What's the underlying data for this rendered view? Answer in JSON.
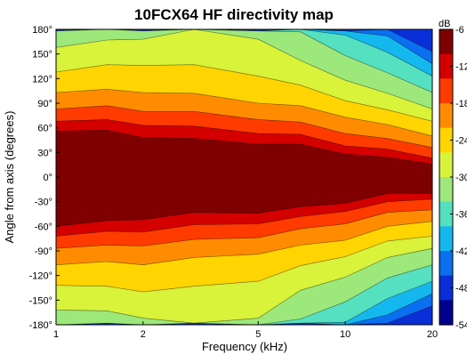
{
  "chart_data": {
    "type": "heatmap",
    "title": "10FCX64 HF directivity map",
    "xlabel": "Frequency (kHz)",
    "ylabel": "Angle from axis (degrees)",
    "x_scale": "log",
    "xlim": [
      1,
      20
    ],
    "ylim": [
      -180,
      180
    ],
    "x_ticks": [
      1,
      2,
      5,
      10,
      20
    ],
    "x_tick_labels": [
      "1",
      "2",
      "5",
      "10",
      "20"
    ],
    "y_ticks": [
      180,
      150,
      120,
      90,
      60,
      30,
      0,
      -30,
      -60,
      -90,
      -120,
      -150,
      -180
    ],
    "y_tick_labels": [
      "180°",
      "150°",
      "120°",
      "90°",
      "60°",
      "30°",
      "0°",
      "-30°",
      "-60°",
      "-90°",
      "-120°",
      "-150°",
      "-180°"
    ],
    "colorbar": {
      "unit": "dB",
      "range": [
        -54,
        -6
      ],
      "ticks": [
        -6,
        -12,
        -18,
        -24,
        -30,
        -36,
        -42,
        -48,
        -54
      ],
      "tick_labels": [
        "-6",
        "-12",
        "-18",
        "-24",
        "-30",
        "-36",
        "-42",
        "-48",
        "-54"
      ],
      "colors": [
        "#7f0000",
        "#d40000",
        "#ff3b00",
        "#ff8c00",
        "#ffd400",
        "#d9f23a",
        "#9ce87a",
        "#55e0c0",
        "#15b8ee",
        "#0a6ff0",
        "#0a2fd8",
        "#000090"
      ]
    },
    "contour_levels_db": [
      -9,
      -12,
      -15,
      -18,
      -21,
      -24,
      -27,
      -30,
      -33,
      -36,
      -39,
      -42,
      -45,
      -48,
      -51
    ],
    "contour_boundary_angles_deg": {
      "frequencies_khz": [
        1,
        1.5,
        2,
        3,
        5,
        7,
        10,
        14,
        20
      ],
      "level_minus9": [
        58,
        55,
        50,
        45,
        42,
        38,
        30,
        22,
        18
      ],
      "level_minus12": [
        70,
        68,
        65,
        60,
        55,
        50,
        40,
        32,
        25
      ],
      "level_minus15": [
        85,
        85,
        82,
        78,
        72,
        65,
        55,
        45,
        38
      ],
      "level_minus18": [
        105,
        105,
        105,
        100,
        92,
        85,
        75,
        62,
        52
      ],
      "level_minus21": [
        130,
        135,
        138,
        135,
        125,
        110,
        95,
        80,
        70
      ],
      "level_minus24": [
        160,
        165,
        170,
        180,
        170,
        140,
        120,
        100,
        85
      ],
      "level_minus27": [
        180,
        180,
        180,
        180,
        180,
        175,
        150,
        125,
        105
      ],
      "level_minus30": [
        180,
        180,
        180,
        180,
        180,
        180,
        175,
        150,
        125
      ],
      "level_minus33": [
        180,
        180,
        180,
        180,
        180,
        180,
        180,
        170,
        140
      ],
      "level_minus36": [
        180,
        180,
        180,
        180,
        180,
        180,
        180,
        180,
        155
      ]
    }
  }
}
